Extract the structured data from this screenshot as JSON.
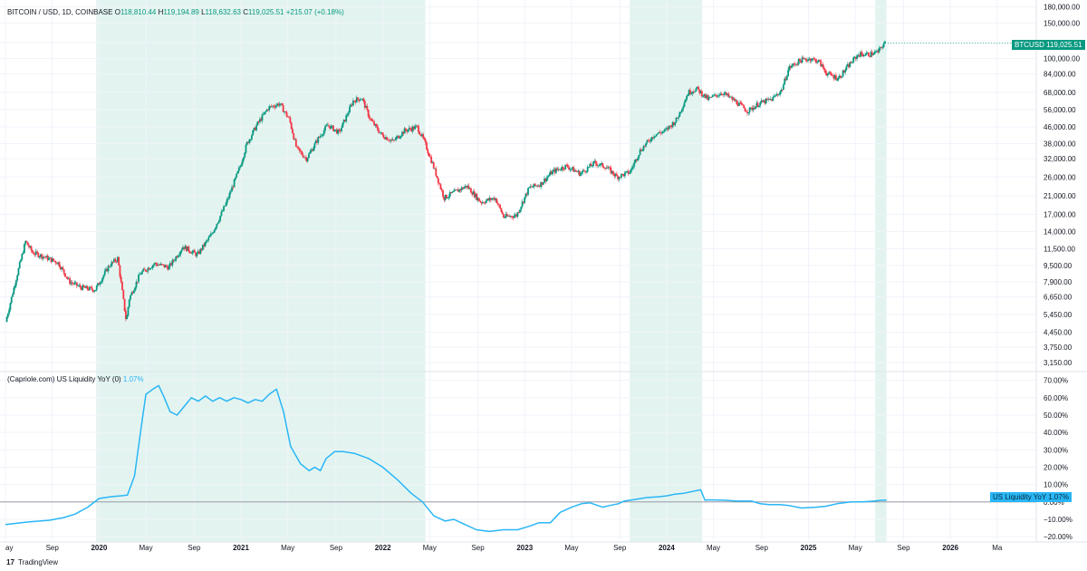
{
  "colors": {
    "up": "#089981",
    "down": "#f23645",
    "liquidity_line": "#29b6f6",
    "highlight_band": "#e3f4f0",
    "grid": "#f0f3fa",
    "text": "#131722"
  },
  "header": {
    "symbol": "BITCOIN / USD, 1D, COINBASE",
    "o_label": "O",
    "o_value": "118,810.44",
    "h_label": "H",
    "h_value": "119,194.89",
    "l_label": "L",
    "l_value": "118,632.63",
    "c_label": "C",
    "c_value": "119,025.51",
    "change": "+215.07 (+0.18%)"
  },
  "indicator_header": {
    "title": "(Capriole.com) US Liquidity YoY (0)",
    "value": "1.07%"
  },
  "price_tag": {
    "label": "BTCUSD",
    "value": "119,025.51"
  },
  "liquidity_tag": {
    "label": "US Liquidity YoY",
    "value": "1.07%"
  },
  "brand": {
    "logo": "17",
    "name": "TradingView"
  },
  "chart_data": [
    {
      "type": "candlestick",
      "title": "BITCOIN / USD, 1D, COINBASE",
      "scale": "log",
      "ylim": [
        2900,
        185000
      ],
      "xlim": [
        2019.34,
        2026.58
      ],
      "y_ticks": [
        "180,000.00",
        "150,000.00",
        "120,000.00",
        "100,000.00",
        "84,000.00",
        "68,000.00",
        "56,000.00",
        "46,000.00",
        "38,000.00",
        "32,000.00",
        "26,000.00",
        "21,000.00",
        "17,000.00",
        "14,000.00",
        "11,500.00",
        "9,500.00",
        "7,900.00",
        "6,650.00",
        "5,450.00",
        "4,450.00",
        "3,750.00",
        "3,150.00"
      ],
      "series": [
        {
          "name": "BTCUSD (approx. trend)",
          "points": [
            [
              2019.35,
              5000
            ],
            [
              2019.42,
              8000
            ],
            [
              2019.49,
              12500
            ],
            [
              2019.54,
              11000
            ],
            [
              2019.62,
              10500
            ],
            [
              2019.72,
              9800
            ],
            [
              2019.8,
              7900
            ],
            [
              2019.88,
              7400
            ],
            [
              2019.98,
              7200
            ],
            [
              2020.08,
              9500
            ],
            [
              2020.14,
              10300
            ],
            [
              2020.2,
              5000
            ],
            [
              2020.22,
              6500
            ],
            [
              2020.3,
              8700
            ],
            [
              2020.4,
              9700
            ],
            [
              2020.5,
              9300
            ],
            [
              2020.6,
              11800
            ],
            [
              2020.7,
              10700
            ],
            [
              2020.8,
              13500
            ],
            [
              2020.9,
              19000
            ],
            [
              2021.0,
              29000
            ],
            [
              2021.05,
              38000
            ],
            [
              2021.12,
              47000
            ],
            [
              2021.2,
              57000
            ],
            [
              2021.28,
              60000
            ],
            [
              2021.35,
              50000
            ],
            [
              2021.4,
              36000
            ],
            [
              2021.47,
              32000
            ],
            [
              2021.55,
              40000
            ],
            [
              2021.62,
              47000
            ],
            [
              2021.7,
              43000
            ],
            [
              2021.8,
              62000
            ],
            [
              2021.86,
              64000
            ],
            [
              2021.92,
              50000
            ],
            [
              2022.0,
              42000
            ],
            [
              2022.08,
              39000
            ],
            [
              2022.16,
              44000
            ],
            [
              2022.25,
              46000
            ],
            [
              2022.3,
              39000
            ],
            [
              2022.36,
              30000
            ],
            [
              2022.44,
              20500
            ],
            [
              2022.52,
              22000
            ],
            [
              2022.6,
              23500
            ],
            [
              2022.7,
              19500
            ],
            [
              2022.8,
              20500
            ],
            [
              2022.86,
              16500
            ],
            [
              2022.95,
              16800
            ],
            [
              2023.04,
              23000
            ],
            [
              2023.12,
              24000
            ],
            [
              2023.2,
              27500
            ],
            [
              2023.3,
              29500
            ],
            [
              2023.4,
              27000
            ],
            [
              2023.5,
              30500
            ],
            [
              2023.58,
              29200
            ],
            [
              2023.66,
              26000
            ],
            [
              2023.75,
              27500
            ],
            [
              2023.82,
              35000
            ],
            [
              2023.92,
              42000
            ],
            [
              2024.0,
              44000
            ],
            [
              2024.08,
              50000
            ],
            [
              2024.16,
              68000
            ],
            [
              2024.22,
              71000
            ],
            [
              2024.3,
              63000
            ],
            [
              2024.4,
              68000
            ],
            [
              2024.5,
              61000
            ],
            [
              2024.58,
              55000
            ],
            [
              2024.66,
              60000
            ],
            [
              2024.75,
              63000
            ],
            [
              2024.82,
              70000
            ],
            [
              2024.87,
              90000
            ],
            [
              2024.95,
              98000
            ],
            [
              2025.02,
              100000
            ],
            [
              2025.08,
              97000
            ],
            [
              2025.14,
              84000
            ],
            [
              2025.22,
              80000
            ],
            [
              2025.3,
              94000
            ],
            [
              2025.36,
              105000
            ],
            [
              2025.44,
              105000
            ],
            [
              2025.5,
              108000
            ],
            [
              2025.54,
              119000
            ]
          ]
        }
      ],
      "last_value": 119025.51
    },
    {
      "type": "line",
      "title": "(Capriole.com) US Liquidity YoY (0)",
      "ylim": [
        -22,
        74
      ],
      "y_ticks": [
        "70.00%",
        "60.00%",
        "50.00%",
        "40.00%",
        "30.00%",
        "20.00%",
        "10.00%",
        "0.00%",
        "−10.00%",
        "−20.00%"
      ],
      "series": [
        {
          "name": "US Liquidity YoY",
          "points": [
            [
              2019.34,
              -13
            ],
            [
              2019.5,
              -11.5
            ],
            [
              2019.65,
              -10.5
            ],
            [
              2019.75,
              -9
            ],
            [
              2019.83,
              -7
            ],
            [
              2019.92,
              -3
            ],
            [
              2020.0,
              2
            ],
            [
              2020.08,
              3
            ],
            [
              2020.15,
              3.5
            ],
            [
              2020.2,
              4
            ],
            [
              2020.25,
              15
            ],
            [
              2020.3,
              45
            ],
            [
              2020.33,
              62
            ],
            [
              2020.38,
              65
            ],
            [
              2020.42,
              67
            ],
            [
              2020.46,
              60
            ],
            [
              2020.5,
              52
            ],
            [
              2020.55,
              50
            ],
            [
              2020.6,
              55
            ],
            [
              2020.65,
              60
            ],
            [
              2020.7,
              58
            ],
            [
              2020.75,
              61
            ],
            [
              2020.8,
              58
            ],
            [
              2020.85,
              60
            ],
            [
              2020.9,
              58
            ],
            [
              2020.95,
              60
            ],
            [
              2021.0,
              59
            ],
            [
              2021.05,
              57
            ],
            [
              2021.1,
              59
            ],
            [
              2021.15,
              58
            ],
            [
              2021.2,
              62
            ],
            [
              2021.25,
              65
            ],
            [
              2021.3,
              52
            ],
            [
              2021.35,
              32
            ],
            [
              2021.42,
              22
            ],
            [
              2021.48,
              18
            ],
            [
              2021.52,
              20
            ],
            [
              2021.56,
              18
            ],
            [
              2021.6,
              25
            ],
            [
              2021.66,
              29
            ],
            [
              2021.72,
              29
            ],
            [
              2021.8,
              28
            ],
            [
              2021.9,
              25
            ],
            [
              2022.0,
              20
            ],
            [
              2022.1,
              13
            ],
            [
              2022.2,
              5
            ],
            [
              2022.28,
              0
            ],
            [
              2022.36,
              -8
            ],
            [
              2022.44,
              -11
            ],
            [
              2022.5,
              -10
            ],
            [
              2022.58,
              -13
            ],
            [
              2022.66,
              -16
            ],
            [
              2022.75,
              -17
            ],
            [
              2022.85,
              -16
            ],
            [
              2022.95,
              -16
            ],
            [
              2023.03,
              -14
            ],
            [
              2023.1,
              -12
            ],
            [
              2023.18,
              -12
            ],
            [
              2023.25,
              -6
            ],
            [
              2023.33,
              -3
            ],
            [
              2023.4,
              -1
            ],
            [
              2023.46,
              -0.5
            ],
            [
              2023.55,
              -3
            ],
            [
              2023.6,
              -2
            ],
            [
              2023.66,
              -1
            ],
            [
              2023.7,
              0.5
            ],
            [
              2023.78,
              1.5
            ],
            [
              2023.86,
              2.5
            ],
            [
              2023.94,
              3
            ],
            [
              2024.0,
              3.5
            ],
            [
              2024.06,
              4.5
            ],
            [
              2024.12,
              5
            ],
            [
              2024.18,
              6
            ],
            [
              2024.24,
              7
            ],
            [
              2024.27,
              1
            ],
            [
              2024.3,
              1.2
            ],
            [
              2024.4,
              1
            ],
            [
              2024.5,
              0.5
            ],
            [
              2024.6,
              0.5
            ],
            [
              2024.66,
              -1
            ],
            [
              2024.72,
              -1.5
            ],
            [
              2024.8,
              -1.5
            ],
            [
              2024.86,
              -2
            ],
            [
              2024.95,
              -3.5
            ],
            [
              2025.05,
              -3
            ],
            [
              2025.12,
              -2.5
            ],
            [
              2025.2,
              -1
            ],
            [
              2025.3,
              0
            ],
            [
              2025.38,
              0
            ],
            [
              2025.46,
              0.5
            ],
            [
              2025.52,
              1
            ],
            [
              2025.55,
              1.07
            ]
          ]
        }
      ],
      "last_value": 1.07
    }
  ],
  "highlight_periods": [
    {
      "start": 2019.98,
      "end": 2022.3
    },
    {
      "start": 2023.74,
      "end": 2024.25
    },
    {
      "start": 2025.47,
      "end": 2025.55
    }
  ],
  "x_axis": {
    "ticks": [
      {
        "t": 2019.34,
        "label": "ay",
        "bold": false
      },
      {
        "t": 2019.67,
        "label": "Sep",
        "bold": false
      },
      {
        "t": 2020.0,
        "label": "2020",
        "bold": true
      },
      {
        "t": 2020.33,
        "label": "May",
        "bold": false
      },
      {
        "t": 2020.67,
        "label": "Sep",
        "bold": false
      },
      {
        "t": 2021.0,
        "label": "2021",
        "bold": true
      },
      {
        "t": 2021.33,
        "label": "May",
        "bold": false
      },
      {
        "t": 2021.67,
        "label": "Sep",
        "bold": false
      },
      {
        "t": 2022.0,
        "label": "2022",
        "bold": true
      },
      {
        "t": 2022.33,
        "label": "May",
        "bold": false
      },
      {
        "t": 2022.67,
        "label": "Sep",
        "bold": false
      },
      {
        "t": 2023.0,
        "label": "2023",
        "bold": true
      },
      {
        "t": 2023.33,
        "label": "May",
        "bold": false
      },
      {
        "t": 2023.67,
        "label": "Sep",
        "bold": false
      },
      {
        "t": 2024.0,
        "label": "2024",
        "bold": true
      },
      {
        "t": 2024.33,
        "label": "May",
        "bold": false
      },
      {
        "t": 2024.67,
        "label": "Sep",
        "bold": false
      },
      {
        "t": 2025.0,
        "label": "2025",
        "bold": true
      },
      {
        "t": 2025.33,
        "label": "May",
        "bold": false
      },
      {
        "t": 2025.67,
        "label": "Sep",
        "bold": false
      },
      {
        "t": 2026.0,
        "label": "2026",
        "bold": true
      },
      {
        "t": 2026.33,
        "label": "Ma",
        "bold": false
      }
    ]
  }
}
